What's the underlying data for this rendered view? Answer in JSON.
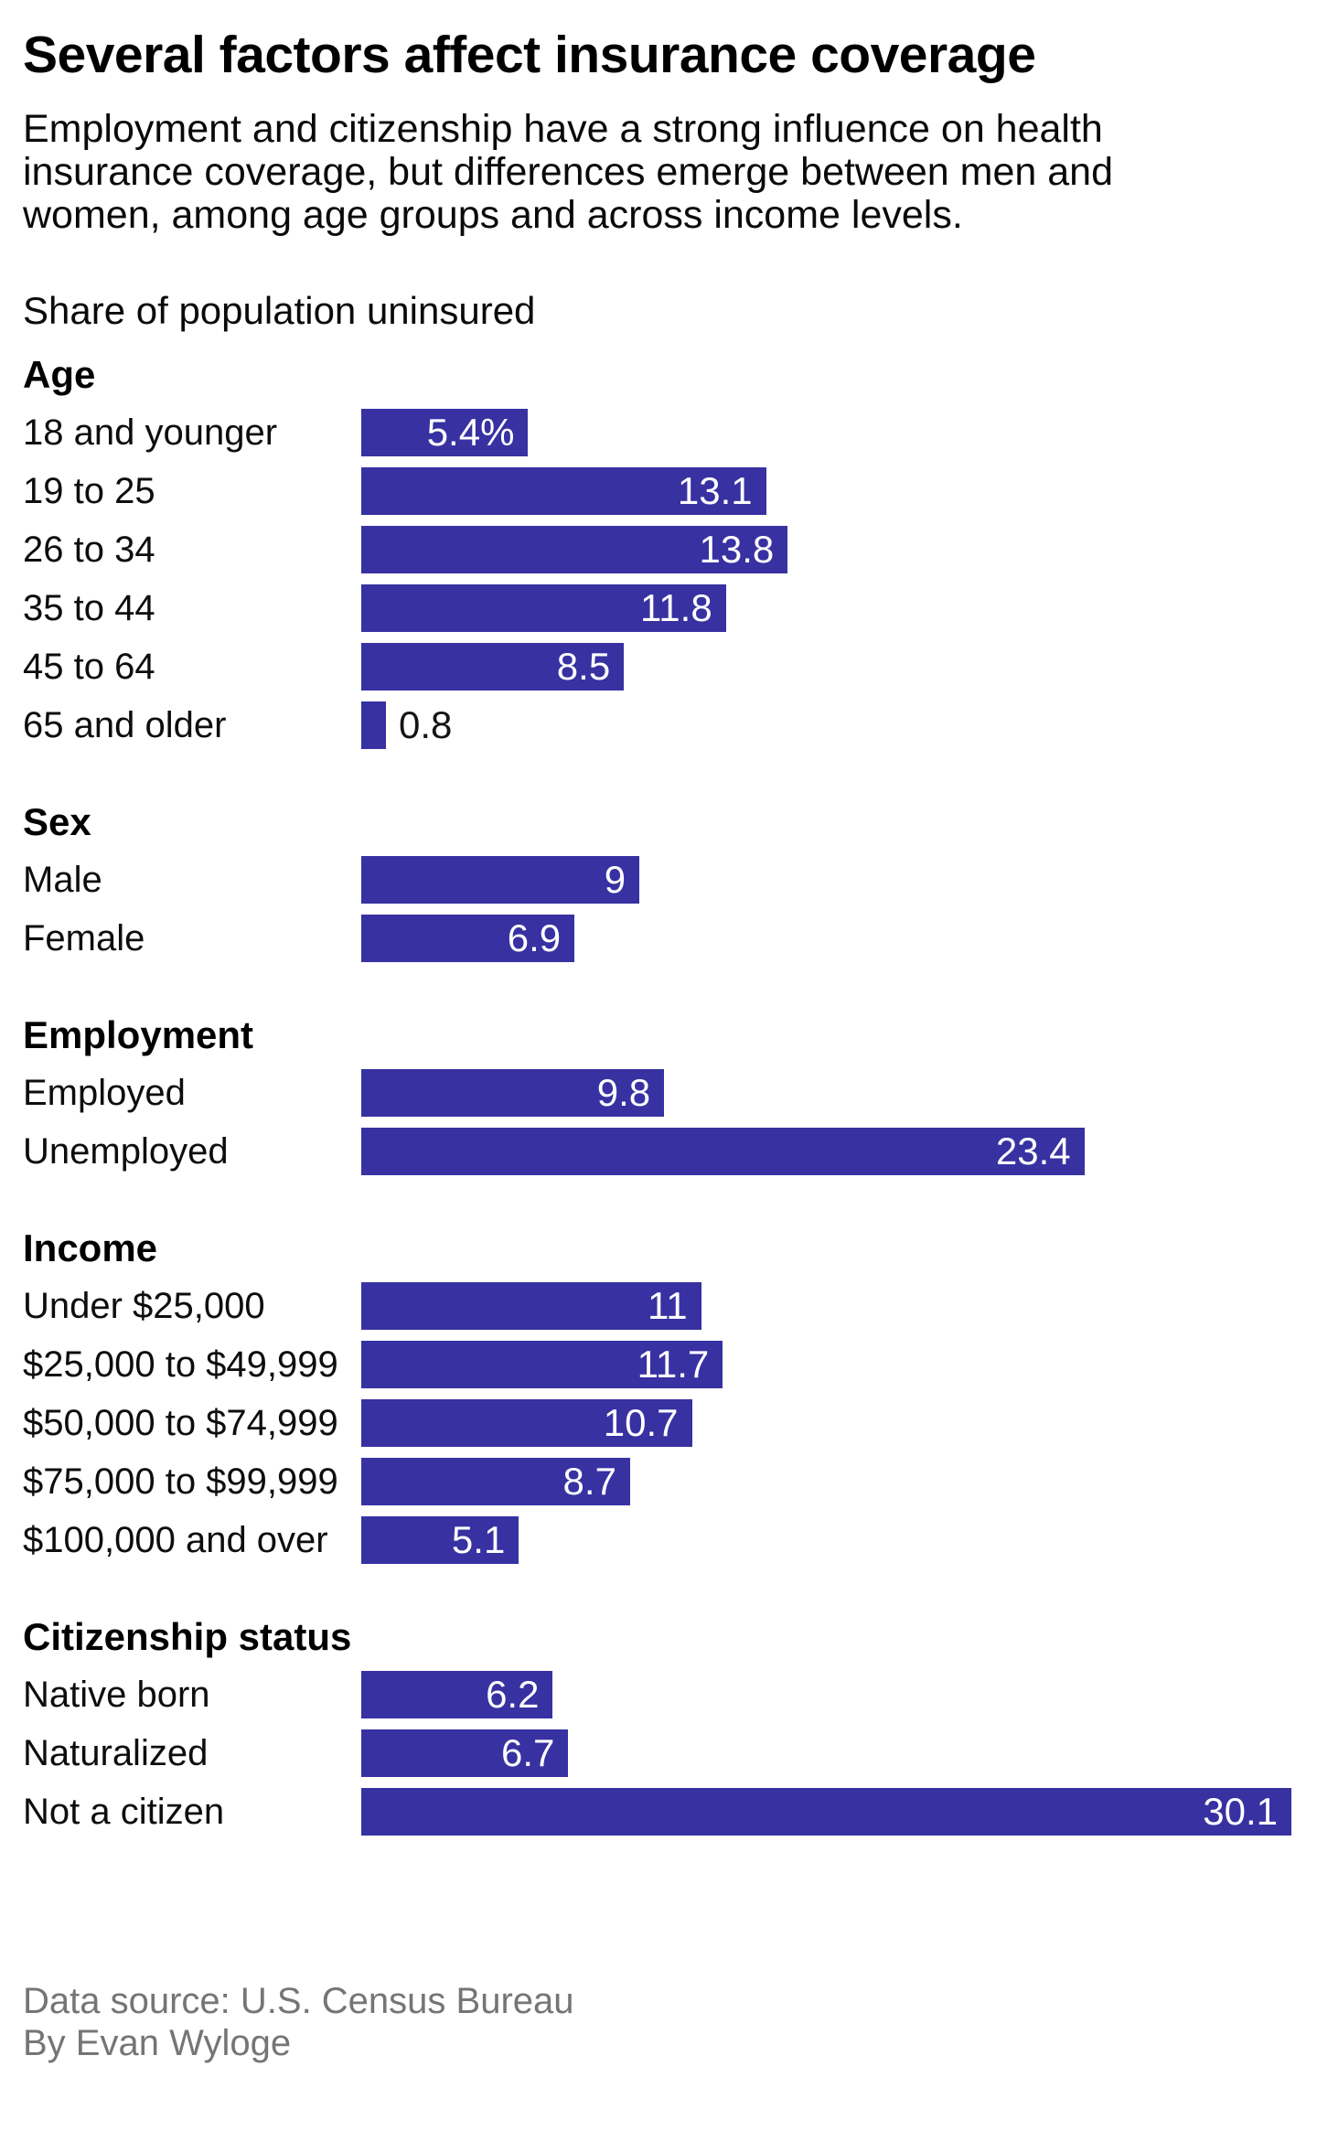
{
  "header": {
    "title": "Several factors affect insurance coverage",
    "subtitle_lines": [
      "Employment and citizenship have a strong influence on health",
      "insurance coverage, but differences emerge between men and",
      "women, among age groups and across income levels."
    ],
    "kicker": "Share of population uninsured"
  },
  "chart_data": {
    "type": "bar",
    "orientation": "horizontal",
    "title": "Several factors affect insurance coverage",
    "xlabel": "",
    "ylabel": "Share of population uninsured",
    "xlim": [
      0,
      30.1
    ],
    "grid": false,
    "legend": "none",
    "groups": [
      {
        "heading": "Age",
        "rows": [
          {
            "label": "18 and younger",
            "value": 5.4,
            "value_label": "5.4%"
          },
          {
            "label": "19 to 25",
            "value": 13.1,
            "value_label": "13.1"
          },
          {
            "label": "26 to 34",
            "value": 13.8,
            "value_label": "13.8"
          },
          {
            "label": "35 to 44",
            "value": 11.8,
            "value_label": "11.8"
          },
          {
            "label": "45 to 64",
            "value": 8.5,
            "value_label": "8.5"
          },
          {
            "label": "65 and older",
            "value": 0.8,
            "value_label": "0.8"
          }
        ]
      },
      {
        "heading": "Sex",
        "rows": [
          {
            "label": "Male",
            "value": 9,
            "value_label": "9"
          },
          {
            "label": "Female",
            "value": 6.9,
            "value_label": "6.9"
          }
        ]
      },
      {
        "heading": "Employment",
        "rows": [
          {
            "label": "Employed",
            "value": 9.8,
            "value_label": "9.8"
          },
          {
            "label": "Unemployed",
            "value": 23.4,
            "value_label": "23.4"
          }
        ]
      },
      {
        "heading": "Income",
        "rows": [
          {
            "label": "Under $25,000",
            "value": 11,
            "value_label": "11"
          },
          {
            "label": "$25,000 to $49,999",
            "value": 11.7,
            "value_label": "11.7"
          },
          {
            "label": "$50,000 to $74,999",
            "value": 10.7,
            "value_label": "10.7"
          },
          {
            "label": "$75,000 to $99,999",
            "value": 8.7,
            "value_label": "8.7"
          },
          {
            "label": "$100,000 and over",
            "value": 5.1,
            "value_label": "5.1"
          }
        ]
      },
      {
        "heading": "Citizenship status",
        "rows": [
          {
            "label": "Native born",
            "value": 6.2,
            "value_label": "6.2"
          },
          {
            "label": "Naturalized",
            "value": 6.7,
            "value_label": "6.7"
          },
          {
            "label": "Not a citizen",
            "value": 30.1,
            "value_label": "30.1"
          }
        ]
      }
    ]
  },
  "footer": {
    "source": "Data source: U.S. Census Bureau",
    "byline": "By Evan Wyloge"
  },
  "colors": {
    "bar": "#3731a2",
    "value_label_inside": "#ffffff",
    "value_label_outside": "#141414",
    "text": "#000000",
    "muted": "#757575"
  }
}
